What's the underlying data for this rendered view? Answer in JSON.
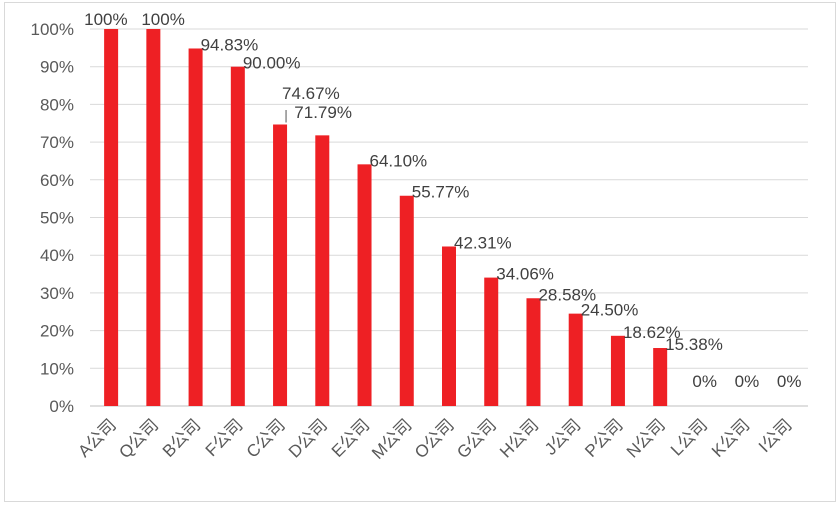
{
  "chart_data": {
    "type": "bar",
    "categories": [
      "A公司",
      "Q公司",
      "B公司",
      "F公司",
      "C公司",
      "D公司",
      "E公司",
      "M公司",
      "O公司",
      "G公司",
      "H公司",
      "J公司",
      "P公司",
      "N公司",
      "L公司",
      "K公司",
      "I公司"
    ],
    "values": [
      100,
      100,
      94.83,
      90.0,
      74.67,
      71.79,
      64.1,
      55.77,
      42.31,
      34.06,
      28.58,
      24.5,
      18.62,
      15.38,
      0,
      0,
      0
    ],
    "data_labels": [
      "100%",
      "100%",
      "94.83%",
      "90.00%",
      "74.67%",
      "71.79%",
      "64.10%",
      "55.77%",
      "42.31%",
      "34.06%",
      "28.58%",
      "24.50%",
      "18.62%",
      "15.38%",
      "0%",
      "0%",
      "0%"
    ],
    "y_ticks": [
      "0%",
      "10%",
      "20%",
      "30%",
      "40%",
      "50%",
      "60%",
      "70%",
      "80%",
      "90%",
      "100%"
    ],
    "ylim": [
      0,
      100
    ],
    "grid": true,
    "legend": "none",
    "bar_color": "#ee2024",
    "grid_color": "#d9d9d9",
    "axis_color": "#bfbfbf"
  }
}
